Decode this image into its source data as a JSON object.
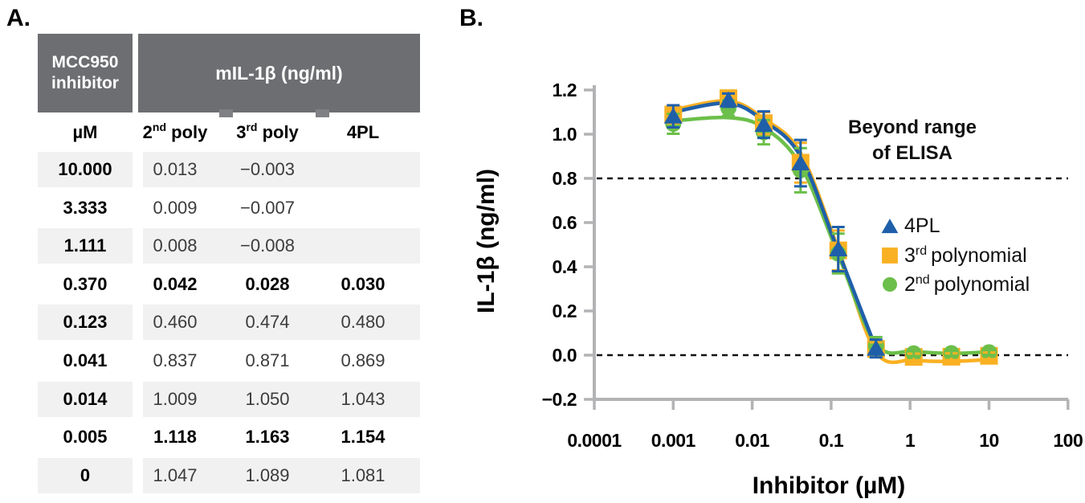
{
  "panels": {
    "a": "A.",
    "b": "B."
  },
  "table": {
    "header": {
      "col1": "MCC950\ninhibitor",
      "col2": "mIL-1β (ng/ml)"
    },
    "subheader": {
      "c1": "µM",
      "c2": {
        "base": "2",
        "sup": "nd",
        "rest": "poly"
      },
      "c3": {
        "base": "3",
        "sup": "rd",
        "rest": "poly"
      },
      "c4": "4PL"
    },
    "rows": [
      {
        "um": "10.000",
        "p2": "0.013",
        "p3": "−0.003",
        "p4": "",
        "bold": false
      },
      {
        "um": "3.333",
        "p2": "0.009",
        "p3": "−0.007",
        "p4": "",
        "bold": false
      },
      {
        "um": "1.111",
        "p2": "0.008",
        "p3": "−0.008",
        "p4": "",
        "bold": false
      },
      {
        "um": "0.370",
        "p2": "0.042",
        "p3": "0.028",
        "p4": "0.030",
        "bold": true
      },
      {
        "um": "0.123",
        "p2": "0.460",
        "p3": "0.474",
        "p4": "0.480",
        "bold": false
      },
      {
        "um": "0.041",
        "p2": "0.837",
        "p3": "0.871",
        "p4": "0.869",
        "bold": false
      },
      {
        "um": "0.014",
        "p2": "1.009",
        "p3": "1.050",
        "p4": "1.043",
        "bold": false
      },
      {
        "um": "0.005",
        "p2": "1.118",
        "p3": "1.163",
        "p4": "1.154",
        "bold": true
      },
      {
        "um": "0",
        "p2": "1.047",
        "p3": "1.089",
        "p4": "1.081",
        "bold": false
      }
    ]
  },
  "chart_data": {
    "type": "scatter-line",
    "xlabel": "Inhibitor (µM)",
    "ylabel": "IL-1β (ng/ml)",
    "x_axis": {
      "scale": "log",
      "min": 0.0001,
      "max": 100,
      "ticks": [
        {
          "v": 0.0001,
          "label": "0.0001"
        },
        {
          "v": 0.001,
          "label": "0.001"
        },
        {
          "v": 0.01,
          "label": "0.01"
        },
        {
          "v": 0.1,
          "label": "0.1"
        },
        {
          "v": 1,
          "label": "1"
        },
        {
          "v": 10,
          "label": "10"
        },
        {
          "v": 100,
          "label": "100"
        }
      ]
    },
    "y_axis": {
      "min": -0.2,
      "max": 1.2,
      "ticks": [
        {
          "v": 1.2,
          "label": "1.2"
        },
        {
          "v": 1.0,
          "label": "1.0"
        },
        {
          "v": 0.8,
          "label": "0.8"
        },
        {
          "v": 0.6,
          "label": "0.6"
        },
        {
          "v": 0.4,
          "label": "0.4"
        },
        {
          "v": 0.2,
          "label": "0.2"
        },
        {
          "v": 0.0,
          "label": "0.0"
        },
        {
          "v": -0.2,
          "label": "−0.2"
        }
      ]
    },
    "reference_lines": [
      0.8,
      0.0
    ],
    "zero_plotted_at": 0.001,
    "annotation": {
      "line1": "Beyond range",
      "line2": "of ELISA"
    },
    "legend": [
      {
        "label": "4PL"
      },
      {
        "base": "3",
        "sup": "rd",
        "rest": "polynomial"
      },
      {
        "base": "2",
        "sup": "nd",
        "rest": "polynomial"
      }
    ],
    "colors": {
      "blue_4pl": "#1f5fa9",
      "yellow_3rd": "#f9b123",
      "green_2nd": "#6cbf4a",
      "axis_gray": "#b2b3b5"
    },
    "series": [
      {
        "name": "4PL",
        "marker": "triangle",
        "color": "#1f5fa9",
        "x": [
          0,
          0.005,
          0.014,
          0.041,
          0.123,
          0.37
        ],
        "values": [
          1.081,
          1.154,
          1.043,
          0.869,
          0.48,
          0.03
        ],
        "err": [
          0.05,
          0.03,
          0.06,
          0.105,
          0.1,
          0.04
        ],
        "trend": [
          1.1,
          1.14,
          1.06,
          0.9,
          0.47,
          0.03
        ]
      },
      {
        "name": "3rd polynomial",
        "marker": "square",
        "color": "#f9b123",
        "x": [
          0,
          0.005,
          0.014,
          0.041,
          0.123,
          0.37,
          1.111,
          3.333,
          10
        ],
        "values": [
          1.089,
          1.163,
          1.05,
          0.871,
          0.474,
          0.028,
          -0.008,
          -0.007,
          -0.003
        ],
        "err": [
          0.04,
          0.03,
          0.05,
          0.09,
          0.09,
          0.03,
          0.015,
          0.015,
          0.015
        ],
        "trend": [
          1.11,
          1.15,
          1.07,
          0.915,
          0.48,
          0.015,
          -0.022,
          -0.028,
          -0.02
        ]
      },
      {
        "name": "2nd polynomial",
        "marker": "circle",
        "color": "#6cbf4a",
        "x": [
          0,
          0.005,
          0.014,
          0.041,
          0.123,
          0.37,
          1.111,
          3.333,
          10
        ],
        "values": [
          1.047,
          1.118,
          1.009,
          0.837,
          0.46,
          0.042,
          0.008,
          0.009,
          0.013
        ],
        "err": [
          0.045,
          0.035,
          0.055,
          0.1,
          0.09,
          0.04,
          0.015,
          0.015,
          0.015
        ],
        "trend": [
          1.06,
          1.075,
          1.03,
          0.86,
          0.455,
          0.05,
          0.018,
          0.008,
          0.015
        ]
      }
    ]
  }
}
